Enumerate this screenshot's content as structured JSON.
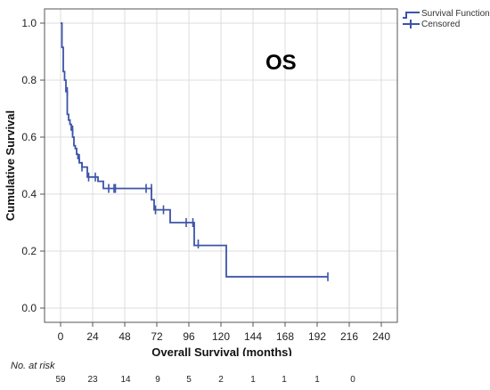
{
  "chart_data": {
    "type": "line",
    "subtype": "kaplan-meier",
    "annotation": "OS",
    "xlabel": "Overall Survival (months)",
    "ylabel": "Cumulative Survival",
    "xlim": [
      -12,
      252
    ],
    "ylim": [
      -0.05,
      1.05
    ],
    "xticks": [
      0,
      24,
      48,
      72,
      96,
      120,
      144,
      168,
      192,
      216,
      240
    ],
    "yticks": [
      0.0,
      0.2,
      0.4,
      0.6,
      0.8,
      1.0
    ],
    "ytick_labels": [
      "0.0",
      "0.2",
      "0.4",
      "0.6",
      "0.8",
      "1.0"
    ],
    "grid": true,
    "legend_position": "top-right",
    "series": [
      {
        "name": "Survival Function",
        "color": "#3c54a8",
        "steps": [
          [
            0,
            1.0
          ],
          [
            1,
            0.915
          ],
          [
            2,
            0.83
          ],
          [
            3,
            0.8
          ],
          [
            4,
            0.76
          ],
          [
            5,
            0.68
          ],
          [
            6,
            0.66
          ],
          [
            7,
            0.645
          ],
          [
            8,
            0.625
          ],
          [
            9,
            0.6
          ],
          [
            10,
            0.57
          ],
          [
            11,
            0.56
          ],
          [
            12,
            0.54
          ],
          [
            13,
            0.525
          ],
          [
            14,
            0.51
          ],
          [
            16,
            0.495
          ],
          [
            20,
            0.46
          ],
          [
            28,
            0.445
          ],
          [
            32,
            0.42
          ],
          [
            68,
            0.38
          ],
          [
            70,
            0.345
          ],
          [
            82,
            0.3
          ],
          [
            100,
            0.22
          ],
          [
            124,
            0.11
          ],
          [
            200,
            0.11
          ]
        ]
      },
      {
        "name": "Censored",
        "color": "#3c54a8",
        "points": [
          [
            5,
            0.76
          ],
          [
            9,
            0.625
          ],
          [
            14,
            0.525
          ],
          [
            16,
            0.495
          ],
          [
            21,
            0.46
          ],
          [
            26,
            0.46
          ],
          [
            36,
            0.42
          ],
          [
            40,
            0.42
          ],
          [
            41,
            0.42
          ],
          [
            64,
            0.42
          ],
          [
            68,
            0.42
          ],
          [
            71,
            0.345
          ],
          [
            77,
            0.345
          ],
          [
            94,
            0.3
          ],
          [
            99,
            0.3
          ],
          [
            103,
            0.225
          ],
          [
            200,
            0.11
          ]
        ]
      }
    ]
  },
  "risk_table": {
    "title": "No. at risk",
    "values": [
      "59",
      "23",
      "14",
      "9",
      "5",
      "2",
      "1",
      "1",
      "1",
      "0"
    ]
  }
}
